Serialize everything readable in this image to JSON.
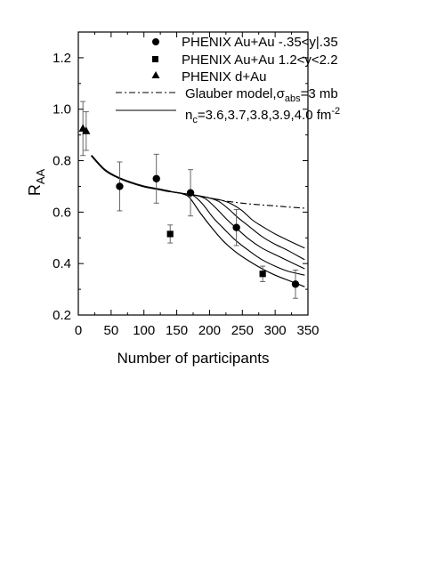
{
  "chart_data": {
    "type": "scatter",
    "xlabel": "Number of participants",
    "ylabel_main": "R",
    "ylabel_sub": "AA",
    "xlim": [
      0,
      350
    ],
    "ylim": [
      0.2,
      1.3
    ],
    "xticks": [
      0,
      50,
      100,
      150,
      200,
      250,
      300,
      350
    ],
    "xtick_labels": [
      "0",
      "50",
      "100",
      "150",
      "200",
      "250",
      "300",
      "350"
    ],
    "yticks": [
      0.2,
      0.4,
      0.6,
      0.8,
      1.0,
      1.2
    ],
    "ytick_labels": [
      "0.2",
      "0.4",
      "0.6",
      "0.8",
      "1.0",
      "1.2"
    ],
    "grid": false,
    "legend_position": "top-right",
    "legend": {
      "mid_rapidity": "PHENIX Au+Au -.35<y|.35",
      "forward_rapidity": "PHENIX Au+Au 1.2<y<2.2",
      "dAu": "PHENIX d+Au",
      "glauber_prefix": "Glauber model,",
      "glauber_sigma": "σ",
      "glauber_sub": "abs",
      "glauber_suffix": "=3 mb",
      "nc_prefix": "n",
      "nc_sub": "c",
      "nc_values": "=3.6,3.7,3.8,3.9,4.0 fm",
      "nc_exp": "-2"
    },
    "series": [
      {
        "name": "PHENIX Au+Au -.35<y|.35",
        "marker": "circle",
        "points": [
          {
            "x": 63,
            "y": 0.7,
            "err": 0.095
          },
          {
            "x": 119,
            "y": 0.73,
            "err": 0.095
          },
          {
            "x": 171,
            "y": 0.675,
            "err": 0.09
          },
          {
            "x": 241,
            "y": 0.54,
            "err": 0.07
          },
          {
            "x": 331,
            "y": 0.32,
            "err": 0.055
          }
        ]
      },
      {
        "name": "PHENIX Au+Au 1.2<y<2.2",
        "marker": "square",
        "points": [
          {
            "x": 140,
            "y": 0.515,
            "err": 0.035
          },
          {
            "x": 281,
            "y": 0.36,
            "err": 0.03
          }
        ]
      },
      {
        "name": "PHENIX d+Au",
        "marker": "triangle",
        "points": [
          {
            "x": 7,
            "y": 0.925,
            "err": 0.105
          },
          {
            "x": 12,
            "y": 0.915,
            "err": 0.075
          }
        ]
      }
    ],
    "glauber_curve": {
      "name": "Glauber model σabs=3 mb",
      "x": [
        20,
        40,
        60,
        80,
        100,
        120,
        140,
        160,
        180,
        200,
        220,
        240,
        260,
        280,
        300,
        320,
        345
      ],
      "y": [
        0.82,
        0.765,
        0.735,
        0.715,
        0.7,
        0.69,
        0.68,
        0.672,
        0.665,
        0.655,
        0.645,
        0.638,
        0.632,
        0.628,
        0.624,
        0.62,
        0.615
      ]
    },
    "nc_curves": [
      {
        "name": "nc=3.6 fm-2",
        "x": [
          20,
          40,
          60,
          80,
          100,
          120,
          140,
          160,
          170,
          185,
          200,
          220,
          240,
          260,
          280,
          300,
          320,
          345
        ],
        "y": [
          0.82,
          0.765,
          0.735,
          0.715,
          0.7,
          0.69,
          0.68,
          0.67,
          0.655,
          0.6,
          0.55,
          0.49,
          0.445,
          0.41,
          0.38,
          0.355,
          0.335,
          0.31
        ]
      },
      {
        "name": "nc=3.7 fm-2",
        "x": [
          20,
          40,
          60,
          80,
          100,
          120,
          140,
          160,
          175,
          190,
          205,
          220,
          240,
          260,
          280,
          300,
          320,
          345
        ],
        "y": [
          0.82,
          0.765,
          0.735,
          0.715,
          0.7,
          0.69,
          0.68,
          0.672,
          0.665,
          0.63,
          0.58,
          0.54,
          0.49,
          0.45,
          0.415,
          0.39,
          0.37,
          0.355
        ]
      },
      {
        "name": "nc=3.8 fm-2",
        "x": [
          20,
          40,
          60,
          80,
          100,
          120,
          140,
          160,
          180,
          195,
          210,
          225,
          240,
          260,
          280,
          300,
          320,
          345
        ],
        "y": [
          0.82,
          0.765,
          0.735,
          0.715,
          0.7,
          0.69,
          0.68,
          0.672,
          0.665,
          0.65,
          0.615,
          0.575,
          0.54,
          0.495,
          0.46,
          0.435,
          0.41,
          0.38
        ]
      },
      {
        "name": "nc=3.9 fm-2",
        "x": [
          20,
          40,
          60,
          80,
          100,
          120,
          140,
          160,
          180,
          200,
          215,
          230,
          245,
          260,
          280,
          300,
          320,
          345
        ],
        "y": [
          0.82,
          0.765,
          0.735,
          0.715,
          0.7,
          0.69,
          0.68,
          0.672,
          0.665,
          0.655,
          0.64,
          0.61,
          0.575,
          0.545,
          0.505,
          0.475,
          0.45,
          0.415
        ]
      },
      {
        "name": "nc=4.0 fm-2",
        "x": [
          20,
          40,
          60,
          80,
          100,
          120,
          140,
          160,
          180,
          200,
          220,
          235,
          250,
          265,
          280,
          300,
          320,
          345
        ],
        "y": [
          0.82,
          0.765,
          0.735,
          0.715,
          0.7,
          0.69,
          0.68,
          0.672,
          0.665,
          0.655,
          0.645,
          0.63,
          0.605,
          0.57,
          0.545,
          0.515,
          0.49,
          0.46
        ]
      }
    ]
  }
}
